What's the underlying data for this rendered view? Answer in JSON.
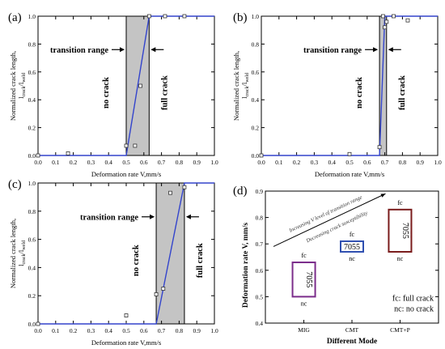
{
  "chart_data": [
    {
      "type": "scatter",
      "panel_label": "(a)",
      "xlabel": "Deformation rate V,mm/s",
      "ylabel": "Normalized crack length,",
      "ylabel_sub": "l",
      "ylabel_sub1": "crack",
      "ylabel_sub2": "/l",
      "ylabel_sub3": "weld",
      "xlim": [
        0,
        1
      ],
      "ylim": [
        0,
        1
      ],
      "xticks": [
        "0.0",
        "0.1",
        "0.2",
        "0.3",
        "0.4",
        "0.5",
        "0.6",
        "0.7",
        "0.8",
        "0.9",
        "1.0"
      ],
      "yticks": [
        "0.0",
        "0.2",
        "0.4",
        "0.6",
        "0.8",
        "1.0"
      ],
      "transition_range": [
        0.5,
        0.63
      ],
      "fit_line": [
        [
          0,
          0
        ],
        [
          0.5,
          0
        ],
        [
          0.63,
          1
        ],
        [
          1,
          1
        ]
      ],
      "points": [
        [
          0,
          0
        ],
        [
          0.17,
          0.015
        ],
        [
          0.5,
          0.07
        ],
        [
          0.55,
          0.07
        ],
        [
          0.58,
          0.5
        ],
        [
          0.63,
          1
        ],
        [
          0.72,
          1
        ],
        [
          0.83,
          1
        ]
      ],
      "labels": {
        "left": "no crack",
        "right": "full crack",
        "transition": "transition range"
      }
    },
    {
      "type": "scatter",
      "panel_label": "(b)",
      "xlabel": "Deformation rate V,mm/s",
      "ylabel": "Normalized crack length,",
      "xlim": [
        0,
        1
      ],
      "ylim": [
        0,
        1
      ],
      "xticks": [
        "0.0",
        "0.1",
        "0.2",
        "0.3",
        "0.4",
        "0.5",
        "0.6",
        "0.7",
        "0.8",
        "0.9",
        "1.0"
      ],
      "yticks": [
        "0.0",
        "0.2",
        "0.4",
        "0.6",
        "0.8",
        "1.0"
      ],
      "transition_range": [
        0.67,
        0.71
      ],
      "fit_line": [
        [
          0,
          0
        ],
        [
          0.67,
          0
        ],
        [
          0.7,
          1
        ],
        [
          1,
          1
        ]
      ],
      "points": [
        [
          0,
          0
        ],
        [
          0.5,
          0.01
        ],
        [
          0.67,
          0.06
        ],
        [
          0.69,
          1
        ],
        [
          0.7,
          0.92
        ],
        [
          0.71,
          0.96
        ],
        [
          0.75,
          1
        ],
        [
          0.83,
          0.97
        ]
      ],
      "labels": {
        "left": "no crack",
        "right": "full crack",
        "transition": "transition range"
      }
    },
    {
      "type": "scatter",
      "panel_label": "(c)",
      "xlabel": "Deformation rate V,mm/s",
      "ylabel": "Normalized crack length,",
      "xlim": [
        0,
        1
      ],
      "ylim": [
        0,
        1
      ],
      "xticks": [
        "0.0",
        "0.1",
        "0.2",
        "0.3",
        "0.4",
        "0.5",
        "0.6",
        "0.7",
        "0.8",
        "0.9",
        "1.0"
      ],
      "yticks": [
        "0.0",
        "0.2",
        "0.4",
        "0.6",
        "0.8",
        "1.0"
      ],
      "transition_range": [
        0.67,
        0.83
      ],
      "fit_line": [
        [
          0,
          0
        ],
        [
          0.67,
          0
        ],
        [
          0.83,
          1
        ],
        [
          1,
          1
        ]
      ],
      "points": [
        [
          0,
          0
        ],
        [
          0.5,
          0.06
        ],
        [
          0.67,
          0.21
        ],
        [
          0.71,
          0.25
        ],
        [
          0.75,
          0.93
        ],
        [
          0.83,
          0.97
        ]
      ],
      "labels": {
        "left": "no crack",
        "right": "full crack",
        "transition": "transition range"
      }
    },
    {
      "type": "bar",
      "panel_label": "(d)",
      "xlabel": "Different Mode",
      "ylabel": "Deformation rate V,  mm/s",
      "categories": [
        "MIG",
        "CMT",
        "CMT+P"
      ],
      "ylim": [
        0.4,
        0.9
      ],
      "yticks": [
        "0.4",
        "0.5",
        "0.6",
        "0.7",
        "0.8",
        "0.9"
      ],
      "ranges": [
        {
          "low": 0.5,
          "high": 0.63,
          "color": "#7b2d8b",
          "label": "7055",
          "top_label": "fc",
          "bottom_label": "nc"
        },
        {
          "low": 0.67,
          "high": 0.71,
          "color": "#2f4fb0",
          "label": "7055",
          "top_label": "fc",
          "bottom_label": "nc"
        },
        {
          "low": 0.67,
          "high": 0.83,
          "color": "#7a1c1c",
          "label": "7055",
          "top_label": "fc",
          "bottom_label": "nc"
        }
      ],
      "arrow_text_1": "Increasing V level of transition range",
      "arrow_text_2": "Decreasing crack susceptibility",
      "legend_1": "fc: full crack",
      "legend_2": "nc: no crack"
    }
  ]
}
